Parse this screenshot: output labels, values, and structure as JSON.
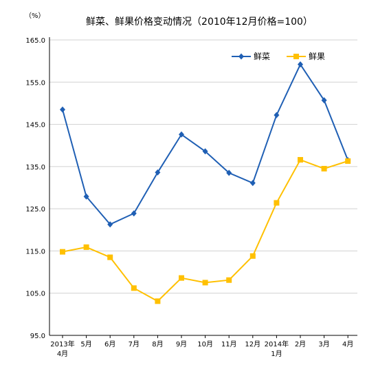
{
  "chart_data": {
    "type": "line",
    "title": "鲜菜、鲜果价格变动情况（2010年12月价格=100）",
    "unit": "（%）",
    "categories": [
      [
        "2013年",
        "4月"
      ],
      [
        "5月"
      ],
      [
        "6月"
      ],
      [
        "7月"
      ],
      [
        "8月"
      ],
      [
        "9月"
      ],
      [
        "10月"
      ],
      [
        "11月"
      ],
      [
        "12月"
      ],
      [
        "2014年",
        "1月"
      ],
      [
        "2月"
      ],
      [
        "3月"
      ],
      [
        "4月"
      ]
    ],
    "ylim": [
      95.0,
      165.0
    ],
    "yticks": [
      "95.0",
      "105.0",
      "115.0",
      "125.0",
      "135.0",
      "145.0",
      "155.0",
      "165.0"
    ],
    "ytick_values": [
      95,
      105,
      115,
      125,
      135,
      145,
      155,
      165
    ],
    "grid": true,
    "legend_position": "top-right",
    "series": [
      {
        "name": "鲜菜",
        "color": "#1f5fb4",
        "marker": "diamond",
        "values": [
          148.5,
          127.9,
          121.3,
          123.9,
          133.6,
          142.6,
          138.6,
          133.5,
          131.1,
          147.2,
          159.2,
          150.7,
          136.5
        ]
      },
      {
        "name": "鲜果",
        "color": "#ffc000",
        "marker": "square",
        "values": [
          114.8,
          115.9,
          113.5,
          106.2,
          103.1,
          108.6,
          107.5,
          108.1,
          113.8,
          126.4,
          136.6,
          134.5,
          136.3
        ]
      }
    ]
  }
}
